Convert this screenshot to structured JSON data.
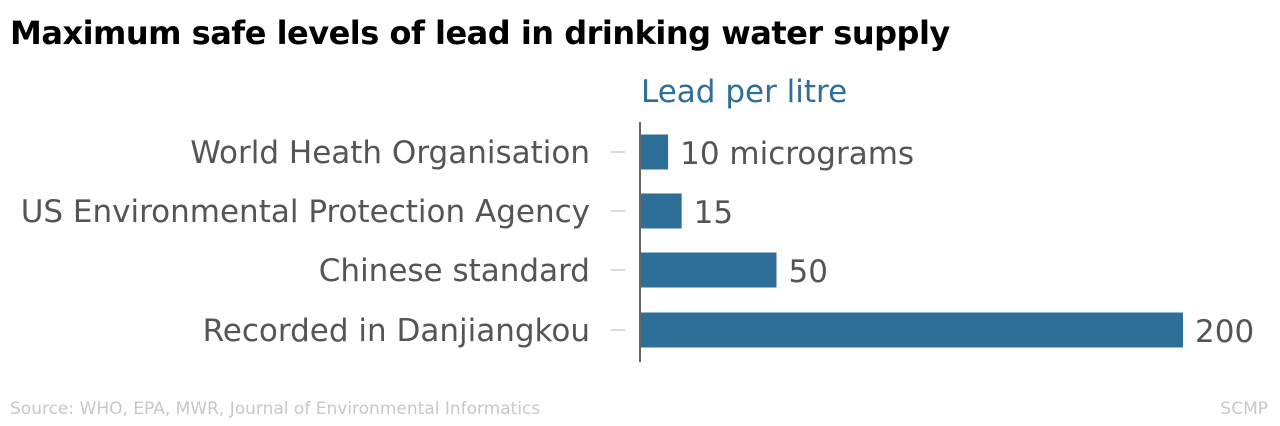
{
  "title": "Maximum safe levels of lead in drinking water supply",
  "source": "Source: WHO, EPA, MWR, Journal of Environmental Informatics",
  "brand": "SCMP",
  "chart_data": {
    "type": "bar",
    "orientation": "horizontal",
    "title": "Maximum safe levels of lead in drinking water supply",
    "subtitle": "Lead per litre",
    "categories": [
      "World Heath Organisation",
      "US Environmental Protection Agency",
      "Chinese standard",
      "Recorded in Danjiangkou"
    ],
    "values": [
      10,
      15,
      50,
      200
    ],
    "data_labels": [
      "10 micrograms",
      "15",
      "50",
      "200"
    ],
    "unit": "micrograms",
    "xlim": [
      0,
      200
    ],
    "grid": false,
    "bar_color": "#2e6f98",
    "label_color": "#555555",
    "subtitle_color": "#2e6f98"
  }
}
